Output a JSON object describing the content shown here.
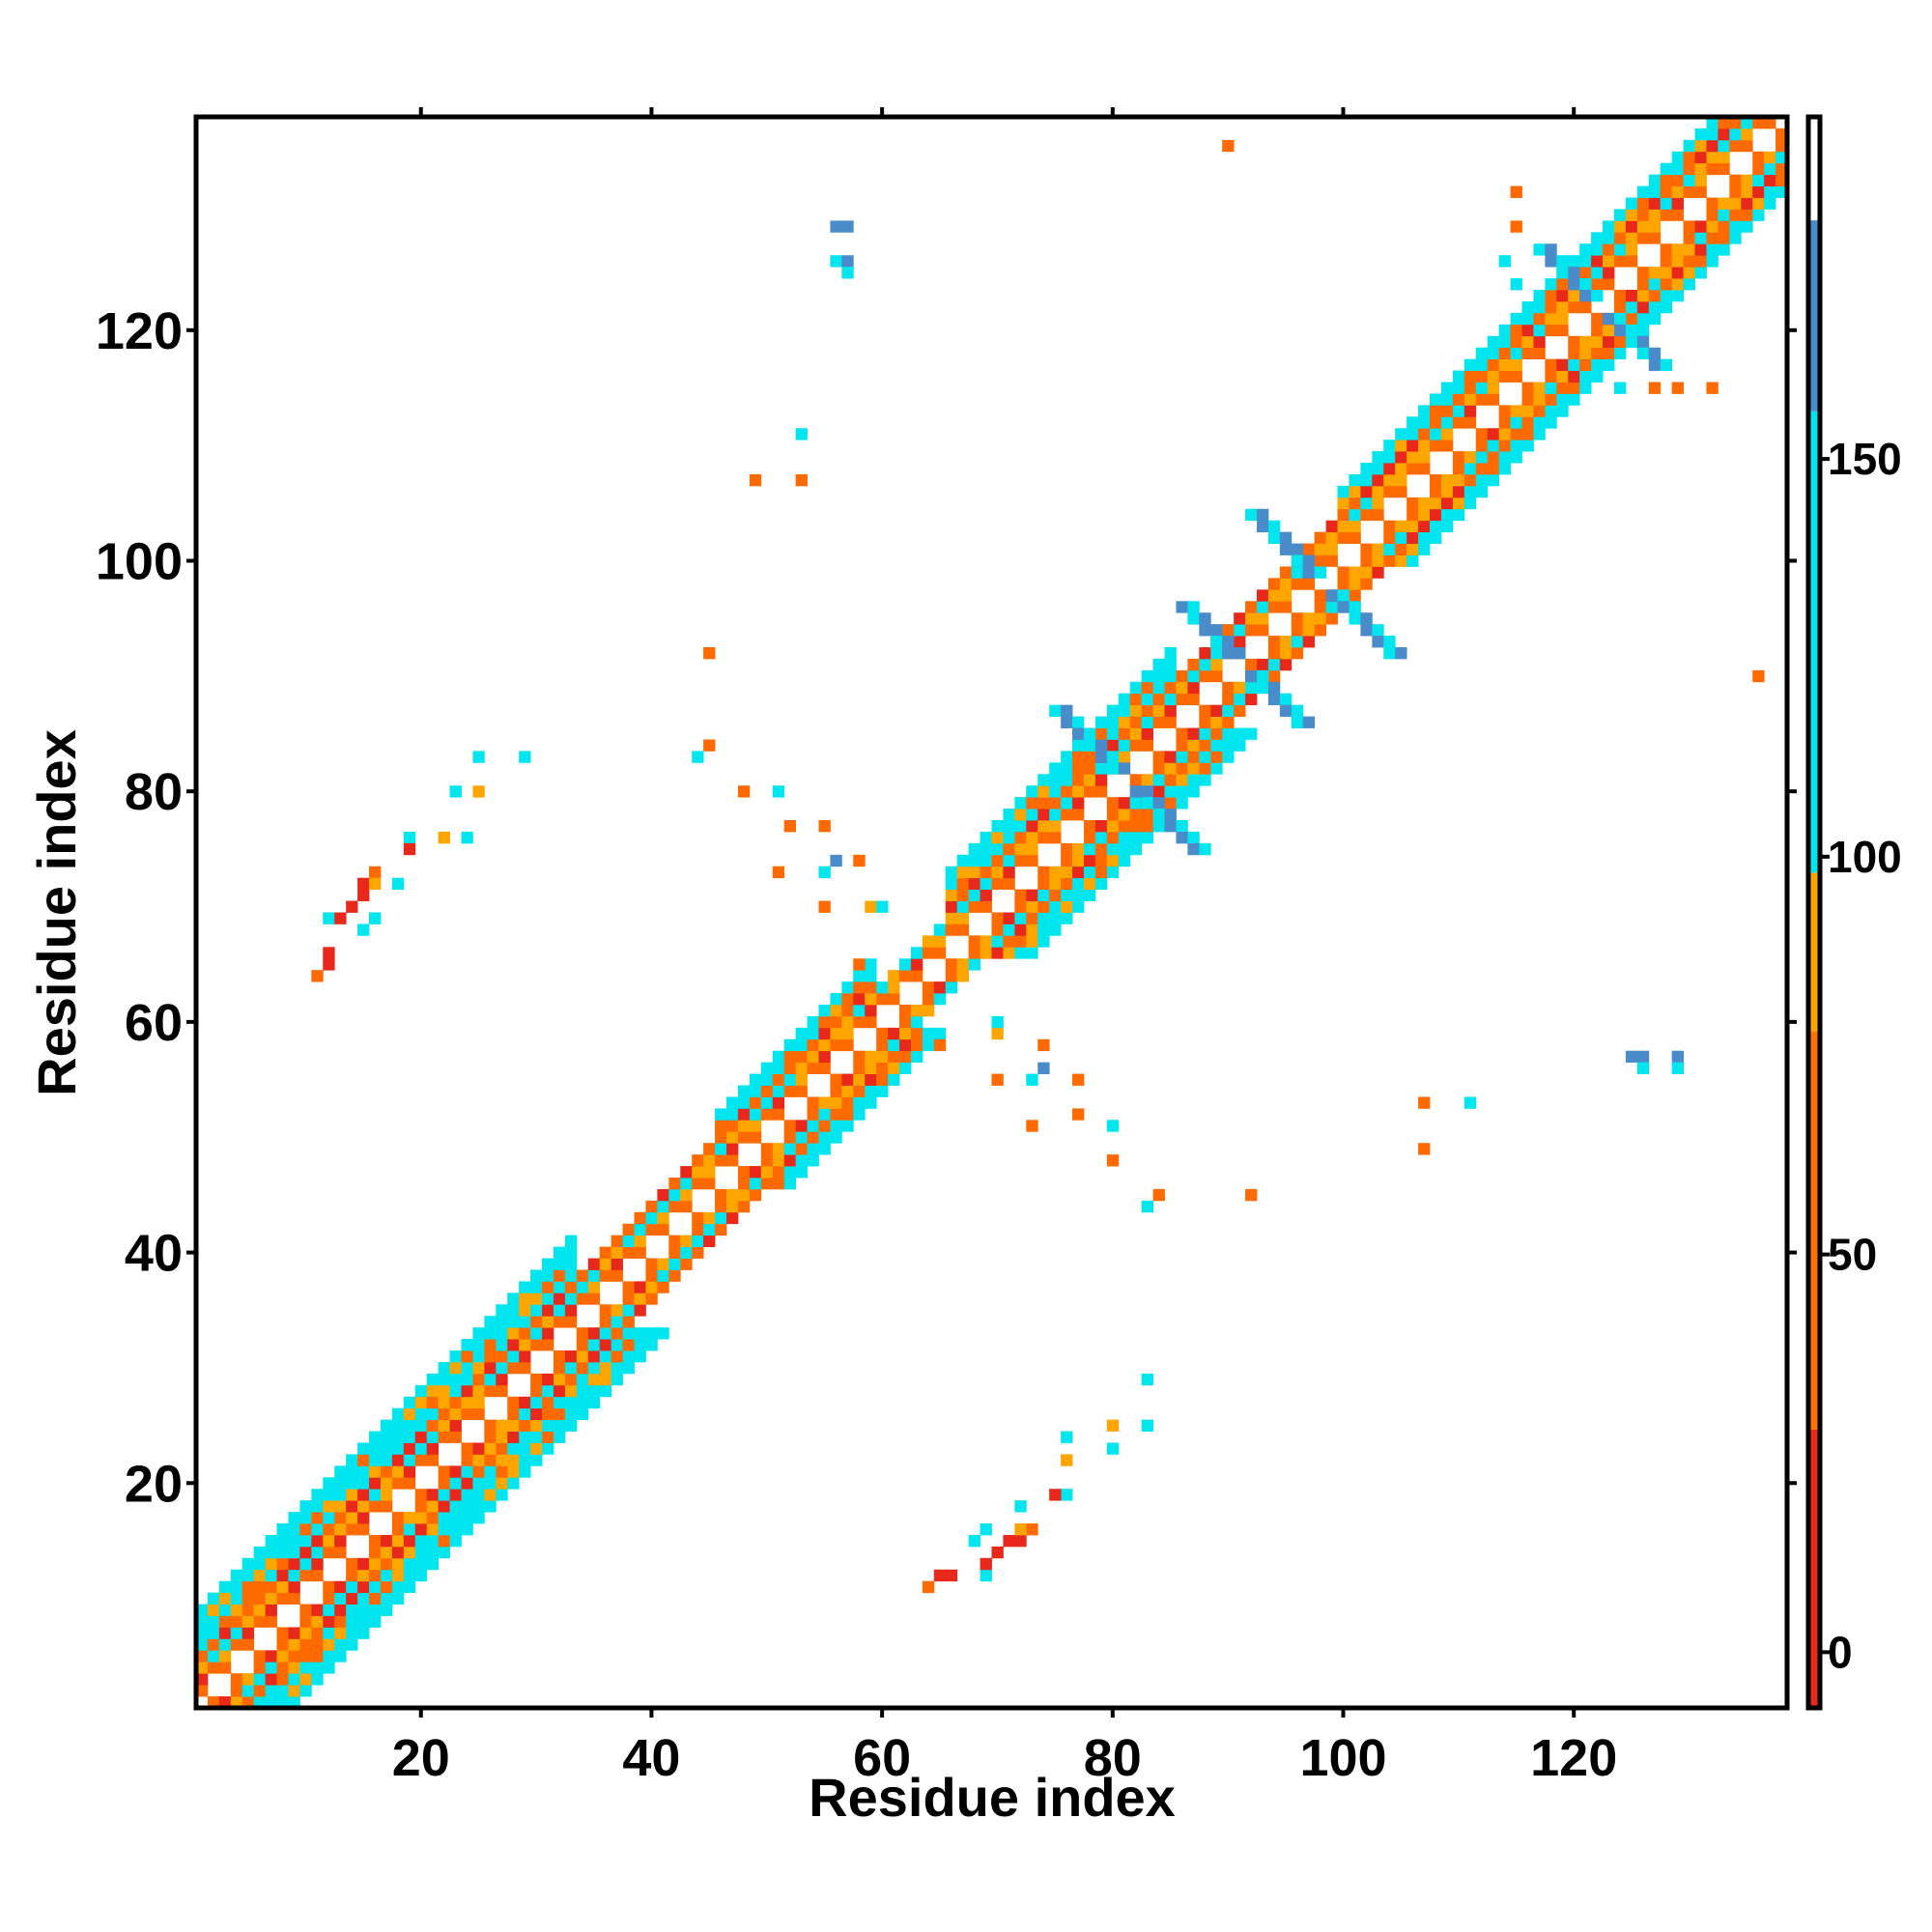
{
  "chart_data": {
    "type": "heatmap",
    "title": "",
    "xlabel": "Residue index",
    "ylabel": "Residue index",
    "xlim": [
      1,
      138
    ],
    "ylim": [
      1,
      138
    ],
    "x_ticks": [
      20,
      40,
      60,
      80,
      100,
      120
    ],
    "y_ticks": [
      20,
      40,
      60,
      80,
      100,
      120
    ],
    "grid": false,
    "colorbar": {
      "ticks": [
        0,
        50,
        100,
        150
      ],
      "range": [
        -7,
        193
      ],
      "bands": [
        {
          "from": -7,
          "to": 28,
          "color": "#e8281a"
        },
        {
          "from": 28,
          "to": 78,
          "color": "#ff7200"
        },
        {
          "from": 78,
          "to": 98,
          "color": "#ffa500"
        },
        {
          "from": 98,
          "to": 156,
          "color": "#00e5ee"
        },
        {
          "from": 156,
          "to": 180,
          "color": "#4a8cc9"
        },
        {
          "from": 180,
          "to": 193,
          "color": "#ffffff"
        }
      ]
    },
    "value_colors": {
      "red": "#e8281a",
      "orange": "#ff6a00",
      "amber": "#ffa500",
      "cyan": "#00e5ee",
      "steelblue": "#4a8cc9"
    },
    "diagonal": {
      "description_values": "band of symmetric contacts along i=j; period-2 checkered pattern near diagonal",
      "segments": [
        {
          "from": 1,
          "to": 34,
          "half_width": 8
        },
        {
          "from": 34,
          "to": 46,
          "half_width": 4
        },
        {
          "from": 46,
          "to": 60,
          "half_width": 6
        },
        {
          "from": 60,
          "to": 66,
          "half_width": 3
        },
        {
          "from": 66,
          "to": 86,
          "half_width": 7
        },
        {
          "from": 86,
          "to": 100,
          "half_width": 4
        },
        {
          "from": 100,
          "to": 116,
          "half_width": 6
        },
        {
          "from": 116,
          "to": 138,
          "half_width": 6
        }
      ]
    },
    "off_diagonal_contacts": [
      {
        "x": 11,
        "y": 64,
        "c": "orange"
      },
      {
        "x": 12,
        "y": 65,
        "c": "red"
      },
      {
        "x": 12,
        "y": 66,
        "c": "red"
      },
      {
        "x": 12,
        "y": 69,
        "c": "cyan"
      },
      {
        "x": 13,
        "y": 69,
        "c": "red"
      },
      {
        "x": 14,
        "y": 70,
        "c": "red"
      },
      {
        "x": 15,
        "y": 71,
        "c": "red"
      },
      {
        "x": 15,
        "y": 72,
        "c": "red"
      },
      {
        "x": 15,
        "y": 68,
        "c": "cyan"
      },
      {
        "x": 16,
        "y": 73,
        "c": "orange"
      },
      {
        "x": 16,
        "y": 72,
        "c": "amber"
      },
      {
        "x": 18,
        "y": 72,
        "c": "cyan"
      },
      {
        "x": 19,
        "y": 76,
        "c": "cyan"
      },
      {
        "x": 19,
        "y": 75,
        "c": "red"
      },
      {
        "x": 22,
        "y": 76,
        "c": "amber"
      },
      {
        "x": 23,
        "y": 80,
        "c": "cyan"
      },
      {
        "x": 24,
        "y": 76,
        "c": "cyan"
      },
      {
        "x": 25,
        "y": 80,
        "c": "amber"
      },
      {
        "x": 25,
        "y": 83,
        "c": "cyan"
      },
      {
        "x": 29,
        "y": 83,
        "c": "cyan"
      },
      {
        "x": 16,
        "y": 69,
        "c": "cyan"
      },
      {
        "x": 64,
        "y": 11,
        "c": "orange"
      },
      {
        "x": 65,
        "y": 12,
        "c": "red"
      },
      {
        "x": 66,
        "y": 12,
        "c": "red"
      },
      {
        "x": 69,
        "y": 12,
        "c": "cyan"
      },
      {
        "x": 69,
        "y": 13,
        "c": "red"
      },
      {
        "x": 70,
        "y": 14,
        "c": "red"
      },
      {
        "x": 71,
        "y": 15,
        "c": "red"
      },
      {
        "x": 72,
        "y": 15,
        "c": "red"
      },
      {
        "x": 68,
        "y": 15,
        "c": "cyan"
      },
      {
        "x": 73,
        "y": 16,
        "c": "orange"
      },
      {
        "x": 72,
        "y": 16,
        "c": "amber"
      },
      {
        "x": 72,
        "y": 18,
        "c": "cyan"
      },
      {
        "x": 76,
        "y": 19,
        "c": "cyan"
      },
      {
        "x": 75,
        "y": 19,
        "c": "red"
      },
      {
        "x": 76,
        "y": 22,
        "c": "amber"
      },
      {
        "x": 80,
        "y": 23,
        "c": "cyan"
      },
      {
        "x": 76,
        "y": 24,
        "c": "cyan"
      },
      {
        "x": 80,
        "y": 25,
        "c": "amber"
      },
      {
        "x": 83,
        "y": 25,
        "c": "cyan"
      },
      {
        "x": 83,
        "y": 29,
        "c": "cyan"
      },
      {
        "x": 69,
        "y": 16,
        "c": "cyan"
      },
      {
        "x": 45,
        "y": 84,
        "c": "orange"
      },
      {
        "x": 44,
        "y": 83,
        "c": "cyan"
      },
      {
        "x": 45,
        "y": 92,
        "c": "orange"
      },
      {
        "x": 48,
        "y": 80,
        "c": "orange"
      },
      {
        "x": 51,
        "y": 80,
        "c": "cyan"
      },
      {
        "x": 52,
        "y": 77,
        "c": "orange"
      },
      {
        "x": 51,
        "y": 73,
        "c": "orange"
      },
      {
        "x": 55,
        "y": 73,
        "c": "cyan"
      },
      {
        "x": 55,
        "y": 77,
        "c": "orange"
      },
      {
        "x": 56,
        "y": 74,
        "c": "steelblue"
      },
      {
        "x": 58,
        "y": 74,
        "c": "orange"
      },
      {
        "x": 59,
        "y": 70,
        "c": "amber"
      },
      {
        "x": 55,
        "y": 70,
        "c": "orange"
      },
      {
        "x": 58,
        "y": 65,
        "c": "orange"
      },
      {
        "x": 60,
        "y": 70,
        "c": "cyan"
      },
      {
        "x": 84,
        "y": 45,
        "c": "orange"
      },
      {
        "x": 83,
        "y": 44,
        "c": "cyan"
      },
      {
        "x": 92,
        "y": 45,
        "c": "orange"
      },
      {
        "x": 80,
        "y": 48,
        "c": "orange"
      },
      {
        "x": 80,
        "y": 51,
        "c": "cyan"
      },
      {
        "x": 77,
        "y": 52,
        "c": "orange"
      },
      {
        "x": 73,
        "y": 51,
        "c": "orange"
      },
      {
        "x": 73,
        "y": 55,
        "c": "cyan"
      },
      {
        "x": 77,
        "y": 55,
        "c": "orange"
      },
      {
        "x": 74,
        "y": 56,
        "c": "steelblue"
      },
      {
        "x": 74,
        "y": 58,
        "c": "orange"
      },
      {
        "x": 70,
        "y": 59,
        "c": "amber"
      },
      {
        "x": 70,
        "y": 55,
        "c": "orange"
      },
      {
        "x": 65,
        "y": 58,
        "c": "orange"
      },
      {
        "x": 70,
        "y": 60,
        "c": "cyan"
      },
      {
        "x": 49,
        "y": 107,
        "c": "orange"
      },
      {
        "x": 53,
        "y": 107,
        "c": "orange"
      },
      {
        "x": 53,
        "y": 111,
        "c": "cyan"
      },
      {
        "x": 56,
        "y": 129,
        "c": "steelblue"
      },
      {
        "x": 57,
        "y": 129,
        "c": "steelblue"
      },
      {
        "x": 56,
        "y": 126,
        "c": "cyan"
      },
      {
        "x": 57,
        "y": 126,
        "c": "steelblue"
      },
      {
        "x": 57,
        "y": 125,
        "c": "cyan"
      },
      {
        "x": 90,
        "y": 136,
        "c": "orange"
      },
      {
        "x": 107,
        "y": 53,
        "c": "orange"
      },
      {
        "x": 107,
        "y": 49,
        "c": "orange"
      },
      {
        "x": 111,
        "y": 53,
        "c": "cyan"
      },
      {
        "x": 125,
        "y": 57,
        "c": "steelblue"
      },
      {
        "x": 126,
        "y": 57,
        "c": "steelblue"
      },
      {
        "x": 126,
        "y": 56,
        "c": "cyan"
      },
      {
        "x": 129,
        "y": 57,
        "c": "steelblue"
      },
      {
        "x": 129,
        "y": 56,
        "c": "cyan"
      },
      {
        "x": 136,
        "y": 90,
        "c": "orange"
      },
      {
        "x": 127,
        "y": 115,
        "c": "orange"
      },
      {
        "x": 129,
        "y": 115,
        "c": "orange"
      },
      {
        "x": 132,
        "y": 115,
        "c": "orange"
      },
      {
        "x": 124,
        "y": 115,
        "c": "cyan"
      },
      {
        "x": 115,
        "y": 129,
        "c": "orange"
      },
      {
        "x": 115,
        "y": 132,
        "c": "orange"
      },
      {
        "x": 114,
        "y": 126,
        "c": "cyan"
      },
      {
        "x": 115,
        "y": 124,
        "c": "cyan"
      }
    ],
    "cross_clusters": [
      {
        "x": 98,
        "y": 98,
        "arm": 6,
        "c": "steelblue"
      },
      {
        "x": 91,
        "y": 91,
        "arm": 5,
        "c": "steelblue"
      },
      {
        "x": 81,
        "y": 81,
        "arm": 6,
        "c": "steelblue"
      },
      {
        "x": 122,
        "y": 122,
        "arm": 5,
        "c": "steelblue"
      }
    ]
  }
}
